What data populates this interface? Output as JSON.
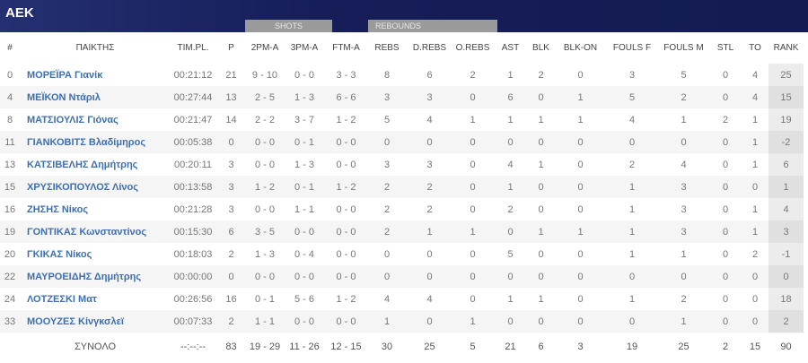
{
  "team": "AEK",
  "groups": {
    "shots": "SHOTS",
    "rebounds": "REBOUNDS"
  },
  "columns": [
    "#",
    "ΠΑΙΚΤΗΣ",
    "TIM.PL.",
    "P",
    "2PM-A",
    "3PM-A",
    "FTM-A",
    "REBS",
    "D.REBS",
    "O.REBS",
    "AST",
    "BLK",
    "BLK-ON",
    "FOULS F",
    "FOULS M",
    "STL",
    "TO",
    "RANK"
  ],
  "rows": [
    [
      "0",
      "ΜΟΡΕΪΡΑ Γιανίκ",
      "00:21:12",
      "21",
      "9 - 10",
      "0 - 0",
      "3 - 3",
      "8",
      "6",
      "2",
      "1",
      "2",
      "0",
      "3",
      "5",
      "0",
      "4",
      "25"
    ],
    [
      "4",
      "ΜΕΪΚΟΝ Ντάριλ",
      "00:27:44",
      "13",
      "2 - 5",
      "1 - 3",
      "6 - 6",
      "3",
      "3",
      "0",
      "6",
      "0",
      "1",
      "5",
      "2",
      "0",
      "4",
      "15"
    ],
    [
      "8",
      "ΜΑΤΣΙΟΥΛΙΣ Γιόνας",
      "00:21:47",
      "14",
      "2 - 2",
      "3 - 7",
      "1 - 2",
      "5",
      "4",
      "1",
      "1",
      "1",
      "1",
      "4",
      "1",
      "2",
      "1",
      "19"
    ],
    [
      "11",
      "ΓΙΑΝΚΟΒΙΤΣ Βλαδίμηρος",
      "00:05:38",
      "0",
      "0 - 0",
      "0 - 1",
      "0 - 0",
      "0",
      "0",
      "0",
      "0",
      "0",
      "0",
      "0",
      "0",
      "0",
      "1",
      "-2"
    ],
    [
      "13",
      "ΚΑΤΣΙΒΕΛΗΣ Δημήτρης",
      "00:20:11",
      "3",
      "0 - 0",
      "1 - 3",
      "0 - 0",
      "3",
      "3",
      "0",
      "4",
      "1",
      "0",
      "2",
      "4",
      "0",
      "1",
      "6"
    ],
    [
      "15",
      "ΧΡΥΣΙΚΟΠΟΥΛΟΣ Λίνος",
      "00:13:58",
      "3",
      "1 - 2",
      "0 - 1",
      "1 - 2",
      "2",
      "2",
      "0",
      "1",
      "0",
      "0",
      "1",
      "3",
      "0",
      "0",
      "1"
    ],
    [
      "16",
      "ΖΗΣΗΣ Νίκος",
      "00:21:28",
      "3",
      "0 - 0",
      "1 - 1",
      "0 - 0",
      "2",
      "2",
      "0",
      "2",
      "0",
      "0",
      "1",
      "3",
      "0",
      "1",
      "4"
    ],
    [
      "19",
      "ΓΟΝΤΙΚΑΣ Κωνσταντίνος",
      "00:15:30",
      "6",
      "3 - 5",
      "0 - 0",
      "0 - 0",
      "2",
      "1",
      "1",
      "0",
      "1",
      "1",
      "1",
      "3",
      "0",
      "1",
      "3"
    ],
    [
      "20",
      "ΓΚΙΚΑΣ Νίκος",
      "00:18:03",
      "2",
      "1 - 3",
      "0 - 4",
      "0 - 0",
      "0",
      "0",
      "0",
      "5",
      "0",
      "0",
      "1",
      "1",
      "0",
      "2",
      "-1"
    ],
    [
      "22",
      "ΜΑΥΡΟΕΙΔΗΣ Δημήτρης",
      "00:00:00",
      "0",
      "0 - 0",
      "0 - 0",
      "0 - 0",
      "0",
      "0",
      "0",
      "0",
      "0",
      "0",
      "0",
      "0",
      "0",
      "0",
      "0"
    ],
    [
      "24",
      "ΛΟΤΖΕΣΚΙ Ματ",
      "00:26:56",
      "16",
      "0 - 1",
      "5 - 6",
      "1 - 2",
      "4",
      "4",
      "0",
      "1",
      "1",
      "0",
      "1",
      "2",
      "0",
      "0",
      "18"
    ],
    [
      "33",
      "ΜΟΟΥΖΕΣ Κίνγκσλεϊ",
      "00:07:33",
      "2",
      "1 - 1",
      "0 - 0",
      "0 - 0",
      "1",
      "0",
      "1",
      "0",
      "0",
      "0",
      "0",
      "1",
      "0",
      "0",
      "2"
    ]
  ],
  "total": [
    "",
    "ΣΥΝΟΛΟ",
    "--:--:--",
    "83",
    "19 - 29",
    "11 - 26",
    "12 - 15",
    "30",
    "25",
    "5",
    "21",
    "6",
    "3",
    "19",
    "25",
    "2",
    "15",
    "90"
  ]
}
